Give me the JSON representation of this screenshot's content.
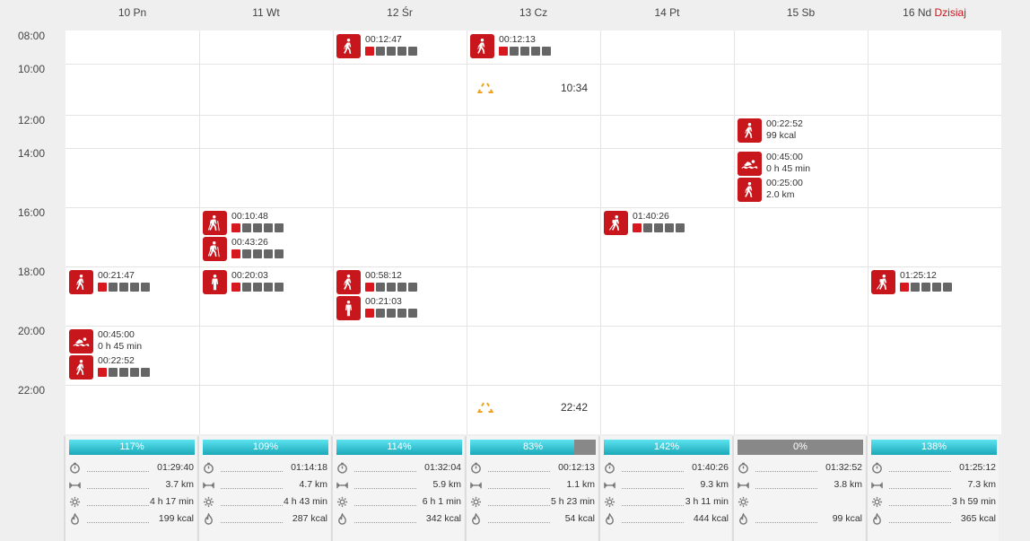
{
  "days": [
    {
      "label": "10 Pn",
      "today": ""
    },
    {
      "label": "11 Wt",
      "today": ""
    },
    {
      "label": "12 Śr",
      "today": ""
    },
    {
      "label": "13 Cz",
      "today": ""
    },
    {
      "label": "14 Pt",
      "today": ""
    },
    {
      "label": "15 Sb",
      "today": ""
    },
    {
      "label": "16 Nd",
      "today": "Dzisiaj"
    }
  ],
  "hours": [
    "08:00",
    "10:00",
    "12:00",
    "14:00",
    "16:00",
    "18:00",
    "20:00",
    "22:00"
  ],
  "events": [
    {
      "day": 2,
      "slot": 0,
      "sub": 0,
      "icon": "walk-icon",
      "time": "00:12:47",
      "line2": "",
      "level": 1
    },
    {
      "day": 3,
      "slot": 0,
      "sub": 0,
      "icon": "walk-icon",
      "time": "00:12:13",
      "line2": "",
      "level": 1
    },
    {
      "day": 5,
      "slot": 2,
      "sub": 0,
      "icon": "walk-icon",
      "time": "00:22:52",
      "line2": "99 kcal",
      "level": 0
    },
    {
      "day": 5,
      "slot": 3,
      "sub": 0,
      "icon": "swim-icon",
      "time": "00:45:00",
      "line2": "0 h 45 min",
      "level": 0
    },
    {
      "day": 5,
      "slot": 3,
      "sub": 1,
      "icon": "walk-icon",
      "time": "00:25:00",
      "line2": "2.0 km",
      "level": 0
    },
    {
      "day": 1,
      "slot": 4,
      "sub": 0,
      "icon": "nordic-walk-icon",
      "time": "00:10:48",
      "line2": "",
      "level": 1
    },
    {
      "day": 1,
      "slot": 4,
      "sub": 1,
      "icon": "nordic-walk-icon",
      "time": "00:43:26",
      "line2": "",
      "level": 1
    },
    {
      "day": 4,
      "slot": 4,
      "sub": 0,
      "icon": "hiking-icon",
      "time": "01:40:26",
      "line2": "",
      "level": 1
    },
    {
      "day": 0,
      "slot": 5,
      "sub": 0,
      "icon": "walk-icon",
      "time": "00:21:47",
      "line2": "",
      "level": 1
    },
    {
      "day": 1,
      "slot": 5,
      "sub": 0,
      "icon": "person-icon",
      "time": "00:20:03",
      "line2": "",
      "level": 1
    },
    {
      "day": 2,
      "slot": 5,
      "sub": 0,
      "icon": "walk-icon",
      "time": "00:58:12",
      "line2": "",
      "level": 1
    },
    {
      "day": 2,
      "slot": 5,
      "sub": 1,
      "icon": "person-icon",
      "time": "00:21:03",
      "line2": "",
      "level": 1
    },
    {
      "day": 6,
      "slot": 5,
      "sub": 0,
      "icon": "hiking-icon",
      "time": "01:25:12",
      "line2": "",
      "level": 1
    },
    {
      "day": 0,
      "slot": 6,
      "sub": 0,
      "icon": "swim-icon",
      "time": "00:45:00",
      "line2": "0 h 45 min",
      "level": 0
    },
    {
      "day": 0,
      "slot": 6,
      "sub": 1,
      "icon": "walk-icon",
      "time": "00:22:52",
      "line2": "",
      "level": 1
    }
  ],
  "warnings": [
    {
      "day": 3,
      "slot": 1,
      "time": "10:34"
    },
    {
      "day": 3,
      "slot": 7,
      "time": "22:42"
    }
  ],
  "summaries": [
    {
      "percent": 117,
      "percent_label": "117%",
      "duration": "01:29:40",
      "distance": "3.7 km",
      "sleep": "4 h 17 min",
      "calories": "199 kcal"
    },
    {
      "percent": 109,
      "percent_label": "109%",
      "duration": "01:14:18",
      "distance": "4.7 km",
      "sleep": "4 h 43 min",
      "calories": "287 kcal"
    },
    {
      "percent": 114,
      "percent_label": "114%",
      "duration": "01:32:04",
      "distance": "5.9 km",
      "sleep": "6 h 1 min",
      "calories": "342 kcal"
    },
    {
      "percent": 83,
      "percent_label": "83%",
      "duration": "00:12:13",
      "distance": "1.1 km",
      "sleep": "5 h 23 min",
      "calories": "54 kcal"
    },
    {
      "percent": 142,
      "percent_label": "142%",
      "duration": "01:40:26",
      "distance": "9.3 km",
      "sleep": "3 h 11 min",
      "calories": "444 kcal"
    },
    {
      "percent": 0,
      "percent_label": "0%",
      "duration": "01:32:52",
      "distance": "3.8 km",
      "sleep": "",
      "calories": "99 kcal"
    },
    {
      "percent": 138,
      "percent_label": "138%",
      "duration": "01:25:12",
      "distance": "7.3 km",
      "sleep": "3 h 59 min",
      "calories": "365 kcal"
    }
  ],
  "colors": {
    "accent": "#c8161d",
    "bar_fill": "#1aa8b8",
    "bar_empty": "#888888",
    "level_on": "#d7191f",
    "level_off": "#666666",
    "warning": "#f0a21d"
  }
}
